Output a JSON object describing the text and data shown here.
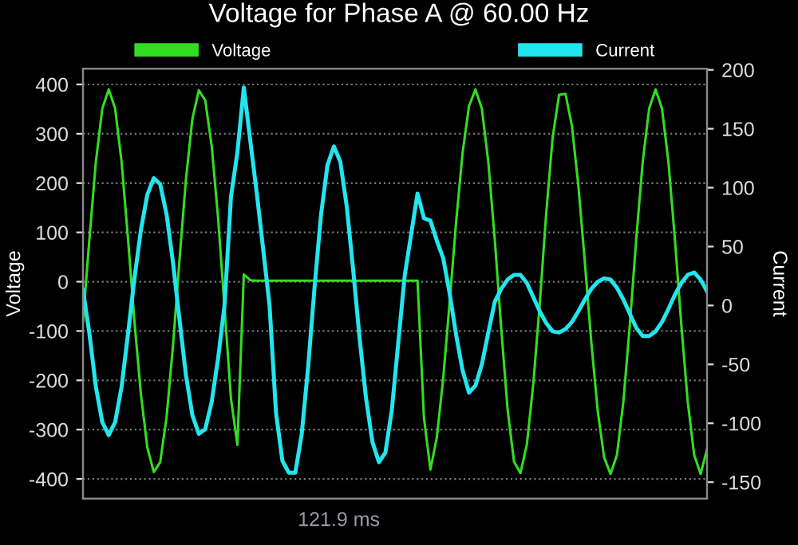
{
  "chart_data": {
    "type": "line",
    "title": "Voltage for Phase A @ 60.00 Hz",
    "ylabel": "Voltage",
    "y2label": "Current",
    "annotations": [
      "121.9 ms"
    ],
    "categories": [
      null,
      null,
      null,
      null,
      null,
      null,
      null,
      null,
      null,
      null,
      null,
      null,
      null,
      null,
      null,
      null,
      null,
      null,
      null,
      null,
      null,
      null,
      null,
      null,
      null,
      null,
      null,
      null,
      null,
      null,
      null,
      null,
      null,
      null,
      null,
      null,
      null,
      null,
      null,
      null,
      null,
      null,
      null,
      null,
      null,
      null,
      null,
      null,
      null,
      null,
      null,
      null,
      null,
      null,
      null,
      null,
      null,
      null,
      null,
      null,
      null,
      null,
      null,
      null,
      null,
      null,
      null,
      null,
      null,
      null,
      null,
      null,
      null,
      null,
      null,
      null,
      null,
      null,
      null,
      null,
      null,
      null,
      null,
      null,
      null,
      null,
      null,
      null,
      null,
      null,
      null,
      null,
      null,
      null,
      null,
      null,
      null,
      null
    ],
    "ylim": [
      -440,
      432
    ],
    "yticks": [
      -400,
      -300,
      -200,
      -100,
      0,
      100,
      200,
      300,
      400
    ],
    "y2lim": [
      -164,
      201
    ],
    "y2ticks": [
      -150,
      -100,
      -50,
      0,
      50,
      100,
      150,
      200
    ],
    "grid": "y",
    "legend": "top",
    "series": [
      {
        "name": "Voltage",
        "color": "#33dd22",
        "values": [
          -80,
          87,
          243,
          351,
          390,
          351,
          243,
          87,
          -81,
          -228,
          -336,
          -386,
          -366,
          -274,
          -128,
          44,
          207,
          330,
          388,
          368,
          276,
          129,
          -52,
          -237,
          -331,
          15,
          3,
          2,
          2,
          2,
          2,
          2,
          2,
          2,
          2,
          2,
          2,
          2,
          2,
          2,
          2,
          2,
          2,
          2,
          2,
          2,
          2,
          2,
          2,
          2,
          2,
          2,
          2,
          -276,
          -381,
          -316,
          -195,
          -41,
          121,
          261,
          356,
          390,
          351,
          243,
          87,
          -93,
          -259,
          -365,
          -388,
          -330,
          -207,
          -44,
          138,
          292,
          379,
          381,
          316,
          195,
          41,
          -121,
          -261,
          -356,
          -390,
          -351,
          -243,
          -87,
          87,
          243,
          351,
          390,
          351,
          243,
          87,
          -87,
          -243,
          -351,
          -390,
          -340
        ]
      },
      {
        "name": "Current",
        "color": "#22e5ee",
        "axis": "y2",
        "values": [
          13,
          -24,
          -69,
          -99,
          -110,
          -99,
          -69,
          -24,
          23,
          64,
          94,
          108,
          103,
          77,
          36,
          -12,
          -59,
          -93,
          -109,
          -105,
          -82,
          -45,
          0,
          92,
          130,
          185,
          140,
          96,
          48,
          0,
          -91,
          -132,
          -142,
          -142,
          -109,
          -52,
          16,
          77,
          119,
          135,
          122,
          84,
          30,
          -28,
          -79,
          -116,
          -133,
          -125,
          -89,
          -32,
          25,
          60,
          95,
          74,
          72,
          55,
          40,
          10,
          -25,
          -55,
          -74,
          -68,
          -50,
          -23,
          3,
          14,
          22,
          26,
          26,
          19,
          7,
          -5,
          -15,
          -22,
          -23,
          -20,
          -14,
          -5,
          5,
          14,
          20,
          23,
          22,
          15,
          5,
          -7,
          -19,
          -26,
          -26,
          -22,
          -14,
          -3,
          9,
          19,
          26,
          28,
          22,
          12
        ]
      }
    ]
  }
}
